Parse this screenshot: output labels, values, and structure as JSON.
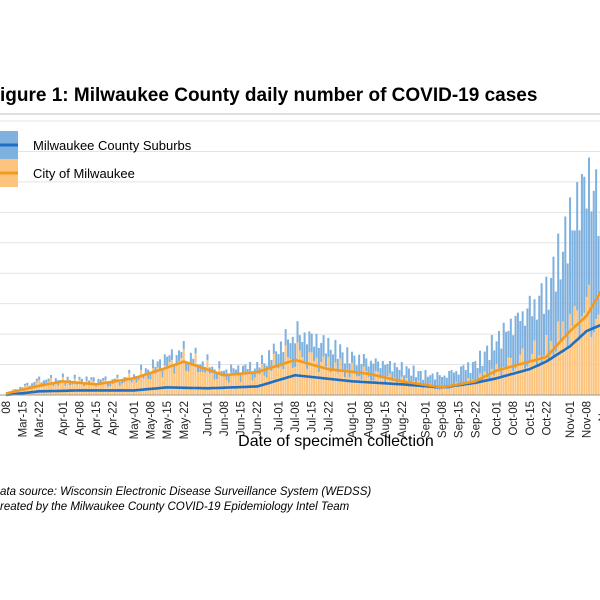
{
  "chart_data": {
    "type": "bar",
    "title": "igure 1: Milwaukee County daily number of COVID-19 cases",
    "xlabel": "Date of specimen collection",
    "ylabel": "",
    "grid": true,
    "legend_position": "top-left",
    "colors": {
      "suburbs_bar": "#7fb1df",
      "city_bar": "#fcc47c",
      "suburbs_line": "#1f6fc5",
      "city_line": "#f39a1e"
    },
    "date_start": "2020-03-08",
    "x_tick_labels": [
      "08",
      "Mar-15",
      "Mar-22",
      "Apr-01",
      "Apr-08",
      "Apr-15",
      "Apr-22",
      "May-01",
      "May-08",
      "May-15",
      "May-22",
      "Jun-01",
      "Jun-08",
      "Jun-15",
      "Jun-22",
      "Jul-01",
      "Jul-08",
      "Jul-15",
      "Jul-22",
      "Aug-01",
      "Aug-08",
      "Aug-15",
      "Aug-22",
      "Sep-01",
      "Sep-08",
      "Sep-15",
      "Sep-22",
      "Oct-01",
      "Oct-08",
      "Oct-15",
      "Oct-22",
      "Nov-01",
      "Nov-08",
      "Nov"
    ],
    "x_tick_dates": [
      "2020-03-08",
      "2020-03-15",
      "2020-03-22",
      "2020-04-01",
      "2020-04-08",
      "2020-04-15",
      "2020-04-22",
      "2020-05-01",
      "2020-05-08",
      "2020-05-15",
      "2020-05-22",
      "2020-06-01",
      "2020-06-08",
      "2020-06-15",
      "2020-06-22",
      "2020-07-01",
      "2020-07-08",
      "2020-07-15",
      "2020-07-22",
      "2020-08-01",
      "2020-08-08",
      "2020-08-15",
      "2020-08-22",
      "2020-09-01",
      "2020-09-08",
      "2020-09-15",
      "2020-09-22",
      "2020-10-01",
      "2020-10-08",
      "2020-10-15",
      "2020-10-22",
      "2020-11-01",
      "2020-11-08",
      "2020-11-15"
    ],
    "ylim": [
      0,
      900
    ],
    "series": [
      {
        "name": "Milwaukee County Suburbs",
        "kind": "bar",
        "anchors": [
          [
            "2020-03-08",
            0
          ],
          [
            "2020-03-22",
            15
          ],
          [
            "2020-04-08",
            12
          ],
          [
            "2020-05-01",
            15
          ],
          [
            "2020-05-15",
            35
          ],
          [
            "2020-06-01",
            25
          ],
          [
            "2020-06-22",
            30
          ],
          [
            "2020-07-08",
            80
          ],
          [
            "2020-08-01",
            55
          ],
          [
            "2020-09-01",
            40
          ],
          [
            "2020-09-22",
            60
          ],
          [
            "2020-10-08",
            140
          ],
          [
            "2020-10-22",
            210
          ],
          [
            "2020-11-01",
            340
          ],
          [
            "2020-11-09",
            450
          ],
          [
            "2020-11-14",
            380
          ]
        ]
      },
      {
        "name": "City of Milwaukee",
        "kind": "bar",
        "anchors": [
          [
            "2020-03-08",
            5
          ],
          [
            "2020-03-22",
            40
          ],
          [
            "2020-04-01",
            45
          ],
          [
            "2020-04-22",
            40
          ],
          [
            "2020-05-08",
            70
          ],
          [
            "2020-05-22",
            120
          ],
          [
            "2020-06-08",
            60
          ],
          [
            "2020-06-22",
            70
          ],
          [
            "2020-07-08",
            140
          ],
          [
            "2020-08-01",
            80
          ],
          [
            "2020-08-22",
            50
          ],
          [
            "2020-09-08",
            20
          ],
          [
            "2020-09-22",
            50
          ],
          [
            "2020-10-08",
            110
          ],
          [
            "2020-10-22",
            150
          ],
          [
            "2020-11-01",
            240
          ],
          [
            "2020-11-09",
            300
          ],
          [
            "2020-11-14",
            250
          ]
        ]
      },
      {
        "name": "Milwaukee County Suburbs",
        "kind": "line",
        "anchors": [
          [
            "2020-03-08",
            0
          ],
          [
            "2020-03-22",
            12
          ],
          [
            "2020-04-08",
            15
          ],
          [
            "2020-05-01",
            15
          ],
          [
            "2020-05-15",
            25
          ],
          [
            "2020-06-01",
            22
          ],
          [
            "2020-06-22",
            28
          ],
          [
            "2020-07-08",
            65
          ],
          [
            "2020-08-01",
            45
          ],
          [
            "2020-08-22",
            35
          ],
          [
            "2020-09-08",
            25
          ],
          [
            "2020-09-22",
            40
          ],
          [
            "2020-10-01",
            55
          ],
          [
            "2020-10-15",
            85
          ],
          [
            "2020-10-22",
            110
          ],
          [
            "2020-11-01",
            160
          ],
          [
            "2020-11-08",
            210
          ],
          [
            "2020-11-14",
            230
          ]
        ]
      },
      {
        "name": "City of Milwaukee",
        "kind": "line",
        "anchors": [
          [
            "2020-03-08",
            5
          ],
          [
            "2020-03-22",
            30
          ],
          [
            "2020-04-01",
            45
          ],
          [
            "2020-04-15",
            35
          ],
          [
            "2020-05-01",
            55
          ],
          [
            "2020-05-15",
            90
          ],
          [
            "2020-05-22",
            110
          ],
          [
            "2020-06-08",
            65
          ],
          [
            "2020-06-22",
            75
          ],
          [
            "2020-07-08",
            115
          ],
          [
            "2020-07-22",
            85
          ],
          [
            "2020-08-08",
            70
          ],
          [
            "2020-08-22",
            45
          ],
          [
            "2020-09-08",
            25
          ],
          [
            "2020-09-22",
            45
          ],
          [
            "2020-10-01",
            80
          ],
          [
            "2020-10-15",
            110
          ],
          [
            "2020-10-22",
            125
          ],
          [
            "2020-11-01",
            210
          ],
          [
            "2020-11-08",
            260
          ],
          [
            "2020-11-14",
            340
          ]
        ]
      }
    ]
  },
  "notes": {
    "source": "ata source: Wisconsin Electronic Disease Surveillance System (WEDSS)",
    "credit": "reated by the Milwaukee County COVID-19 Epidemiology Intel Team"
  }
}
